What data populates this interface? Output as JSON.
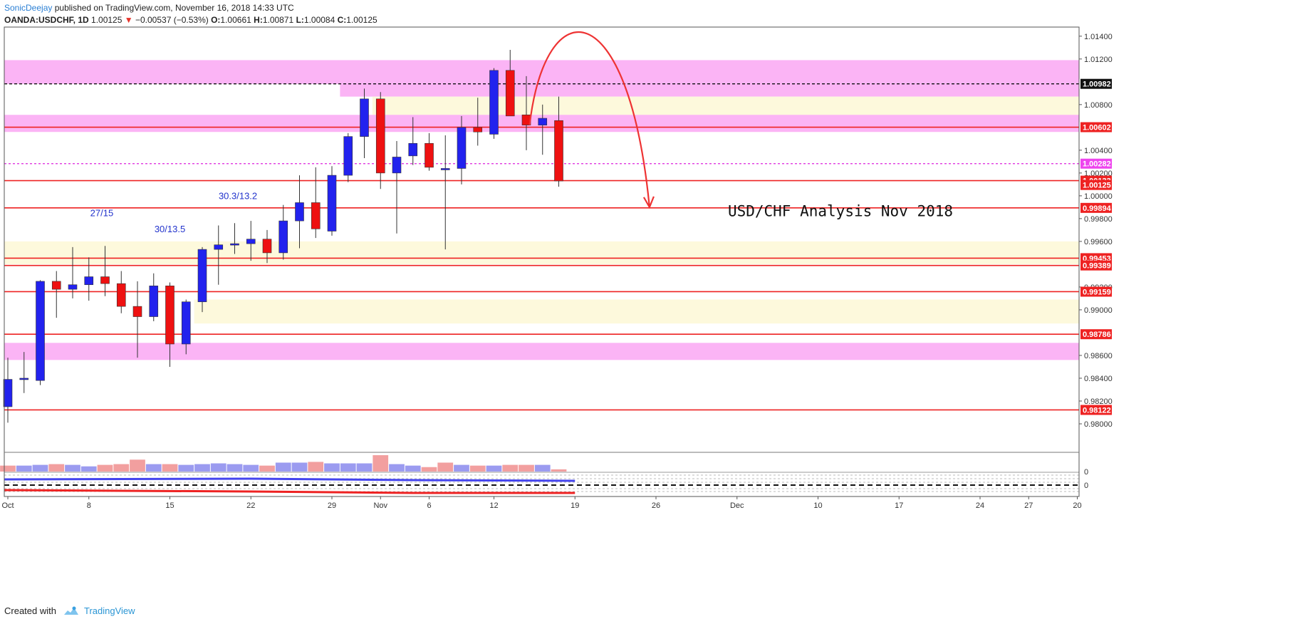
{
  "header": {
    "author": "SonicDeejay",
    "published": "published on TradingView.com, November 16, 2018 14:33 UTC",
    "symbol": "OANDA:USDCHF, 1D",
    "last": "1.00125",
    "change_arrow": "▼",
    "change": "−0.00537 (−0.53%)",
    "o_label": "O:",
    "o_value": "1.00661",
    "h_label": "H:",
    "h_value": "1.00871",
    "l_label": "L:",
    "l_value": "1.00084",
    "c_label": "C:",
    "c_value": "1.00125"
  },
  "footer": {
    "created_with": "Created with",
    "brand": "TradingView"
  },
  "colors": {
    "bull": "#2222ee",
    "bear": "#ee1111",
    "magenta_zone": "#fbb4f5",
    "yellow_zone": "#fdf9dc",
    "level_line": "#ee2222",
    "dashed_black": "#111111",
    "dashed_magenta": "#dd22dd",
    "vol_bull": "#9b9bf0",
    "vol_bear": "#f29f9f"
  },
  "chart_data": {
    "type": "candlestick",
    "title": "USD/CHF Analysis Nov 2018",
    "symbol": "OANDA:USDCHF",
    "timeframe": "1D",
    "y_range": [
      0.9775,
      1.0148
    ],
    "y_ticks": [
      "1.01400",
      "1.01200",
      "1.00800",
      "1.00400",
      "1.00200",
      "1.00000",
      "0.99800",
      "0.99600",
      "0.99200",
      "0.99000",
      "0.98600",
      "0.98400",
      "0.98200",
      "0.98000"
    ],
    "x_ticks": [
      {
        "label": "Oct",
        "index": 0
      },
      {
        "label": "8",
        "index": 5
      },
      {
        "label": "15",
        "index": 10
      },
      {
        "label": "22",
        "index": 15
      },
      {
        "label": "29",
        "index": 20
      },
      {
        "label": "Nov",
        "index": 23
      },
      {
        "label": "6",
        "index": 26
      },
      {
        "label": "12",
        "index": 30
      },
      {
        "label": "19",
        "index": 35
      },
      {
        "label": "26",
        "index": 40
      },
      {
        "label": "Dec",
        "index": 45
      },
      {
        "label": "10",
        "index": 50
      },
      {
        "label": "17",
        "index": 55
      },
      {
        "label": "24",
        "index": 60
      },
      {
        "label": "27",
        "index": 63
      },
      {
        "label": "20",
        "index": 66
      }
    ],
    "candles": [
      {
        "o": 0.9815,
        "h": 0.9858,
        "l": 0.9801,
        "c": 0.9839
      },
      {
        "o": 0.9839,
        "h": 0.9863,
        "l": 0.9827,
        "c": 0.984
      },
      {
        "o": 0.9838,
        "h": 0.9926,
        "l": 0.9834,
        "c": 0.9925
      },
      {
        "o": 0.9925,
        "h": 0.9934,
        "l": 0.9893,
        "c": 0.9918
      },
      {
        "o": 0.9918,
        "h": 0.9955,
        "l": 0.991,
        "c": 0.9922
      },
      {
        "o": 0.9922,
        "h": 0.9946,
        "l": 0.9908,
        "c": 0.9929
      },
      {
        "o": 0.9929,
        "h": 0.9956,
        "l": 0.9912,
        "c": 0.9923
      },
      {
        "o": 0.9923,
        "h": 0.9934,
        "l": 0.9897,
        "c": 0.9903
      },
      {
        "o": 0.9903,
        "h": 0.9925,
        "l": 0.9858,
        "c": 0.9894
      },
      {
        "o": 0.9894,
        "h": 0.9932,
        "l": 0.989,
        "c": 0.9921
      },
      {
        "o": 0.9921,
        "h": 0.9924,
        "l": 0.985,
        "c": 0.987
      },
      {
        "o": 0.987,
        "h": 0.9909,
        "l": 0.9861,
        "c": 0.9907
      },
      {
        "o": 0.9907,
        "h": 0.9955,
        "l": 0.9898,
        "c": 0.9953
      },
      {
        "o": 0.9953,
        "h": 0.9974,
        "l": 0.9922,
        "c": 0.9957
      },
      {
        "o": 0.9957,
        "h": 0.9976,
        "l": 0.9949,
        "c": 0.9958
      },
      {
        "o": 0.9958,
        "h": 0.9978,
        "l": 0.9943,
        "c": 0.9962
      },
      {
        "o": 0.9962,
        "h": 0.997,
        "l": 0.9941,
        "c": 0.995
      },
      {
        "o": 0.995,
        "h": 0.9992,
        "l": 0.9944,
        "c": 0.9978
      },
      {
        "o": 0.9978,
        "h": 1.0018,
        "l": 0.9954,
        "c": 0.9994
      },
      {
        "o": 0.9994,
        "h": 1.0025,
        "l": 0.9963,
        "c": 0.9971
      },
      {
        "o": 0.9969,
        "h": 1.0026,
        "l": 0.9965,
        "c": 1.0018
      },
      {
        "o": 1.0018,
        "h": 1.0055,
        "l": 1.0012,
        "c": 1.0052
      },
      {
        "o": 1.0052,
        "h": 1.0094,
        "l": 1.0033,
        "c": 1.0085
      },
      {
        "o": 1.0085,
        "h": 1.0091,
        "l": 1.0006,
        "c": 1.002
      },
      {
        "o": 1.002,
        "h": 1.0048,
        "l": 0.9967,
        "c": 1.0034
      },
      {
        "o": 1.0035,
        "h": 1.0069,
        "l": 1.0027,
        "c": 1.0046
      },
      {
        "o": 1.0046,
        "h": 1.0055,
        "l": 1.0022,
        "c": 1.0025
      },
      {
        "o": 1.0023,
        "h": 1.0053,
        "l": 0.9953,
        "c": 1.0024
      },
      {
        "o": 1.0024,
        "h": 1.007,
        "l": 1.001,
        "c": 1.006
      },
      {
        "o": 1.006,
        "h": 1.0086,
        "l": 1.0044,
        "c": 1.0056
      },
      {
        "o": 1.0054,
        "h": 1.0112,
        "l": 1.005,
        "c": 1.011
      },
      {
        "o": 1.011,
        "h": 1.0128,
        "l": 1.007,
        "c": 1.007
      },
      {
        "o": 1.0071,
        "h": 1.0105,
        "l": 1.004,
        "c": 1.0062
      },
      {
        "o": 1.0062,
        "h": 1.008,
        "l": 1.0036,
        "c": 1.0068
      },
      {
        "o": 1.0066,
        "h": 1.0087,
        "l": 1.0008,
        "c": 1.0013
      }
    ],
    "volume_directions": [
      "bear",
      "bull",
      "bull",
      "bear",
      "bull",
      "bull",
      "bear",
      "bear",
      "bear",
      "bull",
      "bear",
      "bull",
      "bull",
      "bull",
      "bull",
      "bull",
      "bear",
      "bull",
      "bull",
      "bear",
      "bull",
      "bull",
      "bull",
      "bear",
      "bull",
      "bull",
      "bear",
      "bear",
      "bull",
      "bear",
      "bull",
      "bear",
      "bear",
      "bull",
      "bear"
    ],
    "volume_values": [
      8,
      8,
      9,
      10,
      9,
      7,
      9,
      10,
      16,
      10,
      10,
      9,
      10,
      11,
      10,
      9,
      8,
      12,
      12,
      13,
      11,
      11,
      11,
      22,
      10,
      8,
      6,
      12,
      9,
      8,
      8,
      9,
      9,
      9,
      3
    ],
    "levels": [
      {
        "label": "1.00982",
        "value": 1.00982,
        "style": "dashed-black",
        "tag": "#111111",
        "tag_text": "#ffffff"
      },
      {
        "label": "1.00602",
        "value": 1.00602,
        "style": "solid-red",
        "tag": "#ee2222",
        "tag_text": "#ffffff"
      },
      {
        "label": "1.00282",
        "value": 1.00282,
        "style": "dashed-magenta",
        "tag": "#ee44ee",
        "tag_text": "#ffffff"
      },
      {
        "label": "1.00133",
        "value": 1.00133,
        "style": "solid-red",
        "tag": "#ee2222",
        "tag_text": "#ffffff"
      },
      {
        "label": "1.00125",
        "value": 1.00095,
        "style": "none",
        "tag": "#ee2222",
        "tag_text": "#ffffff"
      },
      {
        "label": "0.99894",
        "value": 0.99894,
        "style": "solid-red",
        "tag": "#ee2222",
        "tag_text": "#ffffff"
      },
      {
        "label": "0.99453",
        "value": 0.99453,
        "style": "solid-red",
        "tag": "#ee2222",
        "tag_text": "#ffffff"
      },
      {
        "label": "0.99389",
        "value": 0.99389,
        "style": "solid-red",
        "tag": "#ee2222",
        "tag_text": "#ffffff"
      },
      {
        "label": "0.99159",
        "value": 0.99159,
        "style": "solid-red",
        "tag": "#ee2222",
        "tag_text": "#ffffff"
      },
      {
        "label": "0.98786",
        "value": 0.98786,
        "style": "solid-red",
        "tag": "#ee2222",
        "tag_text": "#ffffff"
      },
      {
        "label": "0.98122",
        "value": 0.98122,
        "style": "solid-red",
        "tag": "#ee2222",
        "tag_text": "#ffffff"
      }
    ],
    "zones": [
      {
        "kind": "magenta",
        "from_index": 0,
        "y_top": 1.0119,
        "y_bottom": 1.0098
      },
      {
        "kind": "magenta",
        "from_index": 21.0,
        "y_top": 1.0098,
        "y_bottom": 1.0087
      },
      {
        "kind": "yellow",
        "from_index": 23.0,
        "y_top": 1.0087,
        "y_bottom": 1.007
      },
      {
        "kind": "magenta",
        "from_index": 0,
        "y_top": 1.0071,
        "y_bottom": 1.0056
      },
      {
        "kind": "yellow",
        "from_index": 0,
        "y_top": 0.996,
        "y_bottom": 0.994
      },
      {
        "kind": "yellow",
        "from_index": 12.0,
        "y_top": 0.9909,
        "y_bottom": 0.9888
      },
      {
        "kind": "magenta",
        "from_index": 0,
        "y_top": 0.9871,
        "y_bottom": 0.9856
      }
    ],
    "annotations": [
      {
        "text": "27/15",
        "index": 5.8,
        "value": 0.9982
      },
      {
        "text": "30/13.5",
        "index": 10.0,
        "value": 0.9968
      },
      {
        "text": "30.3/13.2",
        "index": 14.2,
        "value": 0.9997
      }
    ],
    "arrow_path": {
      "start": {
        "index": 32.2,
        "value": 1.0062
      },
      "peak": {
        "index": 35.2,
        "value": 1.0137
      },
      "end": {
        "index": 39.6,
        "value": 0.999
      }
    }
  }
}
